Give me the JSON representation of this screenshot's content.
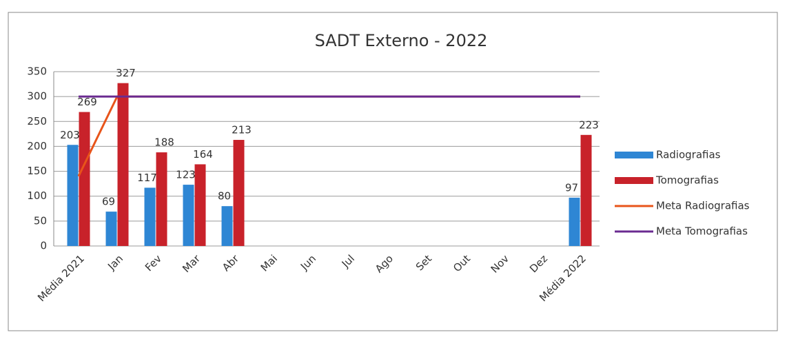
{
  "chart_data": {
    "type": "bar",
    "title": "SADT Externo - 2022",
    "categories": [
      "Média 2021",
      "Jan",
      "Fev",
      "Mar",
      "Abr",
      "Mai",
      "Jun",
      "Jul",
      "Ago",
      "Set",
      "Out",
      "Nov",
      "Dez",
      "Média 2022"
    ],
    "series": [
      {
        "name": "Radiografias",
        "color": "#2e86d4",
        "type": "bar",
        "values": [
          203,
          69,
          117,
          123,
          80,
          null,
          null,
          null,
          null,
          null,
          null,
          null,
          null,
          97
        ]
      },
      {
        "name": "Tomografias",
        "color": "#c8222a",
        "type": "bar",
        "values": [
          269,
          327,
          188,
          164,
          213,
          null,
          null,
          null,
          null,
          null,
          null,
          null,
          null,
          223
        ]
      },
      {
        "name": "Meta Radiografias",
        "color": "#e8541a",
        "type": "line",
        "values": [
          140,
          300,
          300,
          300,
          300,
          300,
          300,
          300,
          300,
          300,
          300,
          300,
          300,
          300
        ]
      },
      {
        "name": "Meta Tomografias",
        "color": "#6a2a90",
        "type": "line",
        "values": [
          300,
          300,
          300,
          300,
          300,
          300,
          300,
          300,
          300,
          300,
          300,
          300,
          300,
          300
        ]
      }
    ],
    "ylim": [
      0,
      350
    ],
    "yticks": [
      0,
      50,
      100,
      150,
      200,
      250,
      300,
      350
    ],
    "grid": true,
    "legend": "right"
  }
}
